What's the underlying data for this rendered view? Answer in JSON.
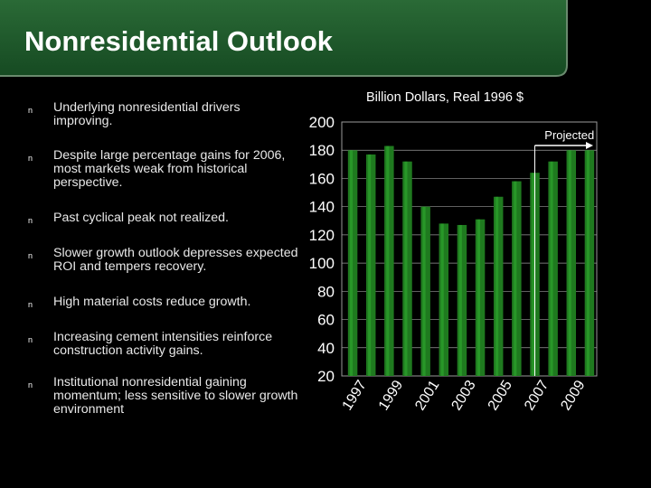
{
  "slide": {
    "title": "Nonresidential Outlook",
    "bullet_glyph": "n",
    "bullets": [
      "Underlying nonresidential drivers improving.",
      "Despite large percentage gains for 2006, most markets weak from historical perspective.",
      "Past cyclical peak not realized.",
      "Slower growth outlook depresses expected ROI and tempers recovery.",
      "High material costs reduce growth.",
      "Increasing cement intensities reinforce construction activity gains.",
      "Institutional nonresidential gaining momentum; less sensitive to slower growth environment"
    ]
  },
  "colors": {
    "background": "#000000",
    "header_green": "#1f5a2c",
    "bar_green": "#1f7a1f",
    "bar_highlight": "#2fae2f",
    "grid": "#9a9a9a"
  },
  "chart_data": {
    "type": "bar",
    "title": "Billion Dollars, Real 1996 $",
    "annotation": "Projected",
    "projected_from": "2007",
    "categories": [
      "1997",
      "1998",
      "1999",
      "2000",
      "2001",
      "2002",
      "2003",
      "2004",
      "2005",
      "2006",
      "2007",
      "2008",
      "2009",
      "2010"
    ],
    "values": [
      180,
      177,
      183,
      172,
      140,
      128,
      127,
      131,
      147,
      158,
      164,
      172,
      180,
      180
    ],
    "x_tick_labels": [
      "1997",
      "1999",
      "2001",
      "2003",
      "2005",
      "2007",
      "2009"
    ],
    "y_ticks": [
      20,
      40,
      60,
      80,
      100,
      120,
      140,
      160,
      180,
      200
    ],
    "ylim": [
      20,
      200
    ],
    "grid": true,
    "xlabel": "",
    "ylabel": ""
  }
}
